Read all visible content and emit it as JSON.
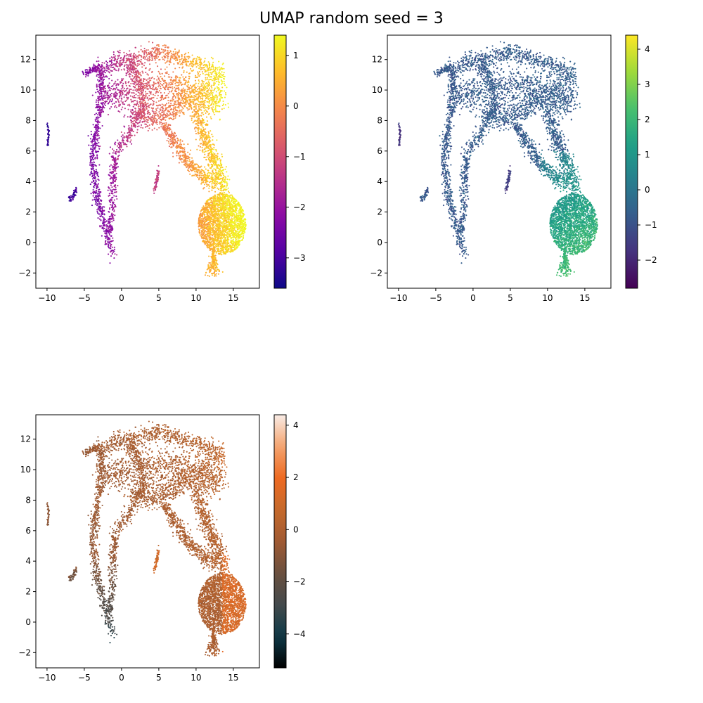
{
  "title": "UMAP random seed = 3",
  "chart_data": [
    {
      "type": "scatter",
      "name": "panel-top-left",
      "colormap": "plasma",
      "xlim": [
        -11.5,
        18.5
      ],
      "ylim": [
        -3.0,
        13.6
      ],
      "xticks": [
        -10,
        -5,
        0,
        5,
        10,
        15
      ],
      "yticks": [
        -2,
        0,
        2,
        4,
        6,
        8,
        10,
        12
      ],
      "colorbar": {
        "min": -3.6,
        "max": 1.4,
        "ticks": [
          -3,
          -2,
          -1,
          0,
          1
        ]
      }
    },
    {
      "type": "scatter",
      "name": "panel-top-right",
      "colormap": "viridis",
      "xlim": [
        -11.5,
        18.5
      ],
      "ylim": [
        -3.0,
        13.6
      ],
      "xticks": [
        -10,
        -5,
        0,
        5,
        10,
        15
      ],
      "yticks": [
        -2,
        0,
        2,
        4,
        6,
        8,
        10,
        12
      ],
      "colorbar": {
        "min": -2.8,
        "max": 4.4,
        "ticks": [
          -2,
          -1,
          0,
          1,
          2,
          3,
          4
        ]
      }
    },
    {
      "type": "scatter",
      "name": "panel-bottom-left",
      "colormap": "oranges-dark",
      "xlim": [
        -11.5,
        18.5
      ],
      "ylim": [
        -3.0,
        13.6
      ],
      "xticks": [
        -10,
        -5,
        0,
        5,
        10,
        15
      ],
      "yticks": [
        -2,
        0,
        2,
        4,
        6,
        8,
        10,
        12
      ],
      "colorbar": {
        "min": -5.3,
        "max": 4.4,
        "ticks": [
          -4,
          -2,
          0,
          2,
          4
        ]
      }
    }
  ]
}
